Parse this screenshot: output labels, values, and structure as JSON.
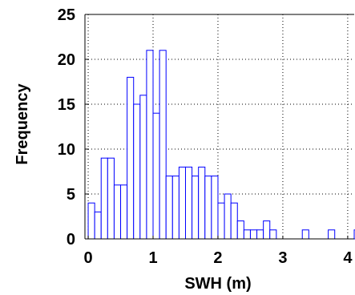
{
  "chart_data": {
    "type": "bar",
    "xlabel": "SWH (m)",
    "ylabel": "Frequency",
    "xlim": [
      -0.05,
      4.1
    ],
    "ylim": [
      0,
      25
    ],
    "xticks": [
      "0",
      "1",
      "2",
      "3",
      "4"
    ],
    "yticks": [
      "0",
      "5",
      "10",
      "15",
      "20",
      "25"
    ],
    "grid": true,
    "bin_width": 0.1,
    "bar_color": "#0000ff",
    "bars": [
      {
        "x": 0.0,
        "y": 4
      },
      {
        "x": 0.1,
        "y": 3
      },
      {
        "x": 0.2,
        "y": 9
      },
      {
        "x": 0.3,
        "y": 9
      },
      {
        "x": 0.4,
        "y": 6
      },
      {
        "x": 0.5,
        "y": 6
      },
      {
        "x": 0.6,
        "y": 18
      },
      {
        "x": 0.7,
        "y": 15
      },
      {
        "x": 0.8,
        "y": 16
      },
      {
        "x": 0.9,
        "y": 21
      },
      {
        "x": 1.0,
        "y": 14
      },
      {
        "x": 1.1,
        "y": 21
      },
      {
        "x": 1.2,
        "y": 7
      },
      {
        "x": 1.3,
        "y": 7
      },
      {
        "x": 1.4,
        "y": 8
      },
      {
        "x": 1.5,
        "y": 8
      },
      {
        "x": 1.6,
        "y": 7
      },
      {
        "x": 1.7,
        "y": 8
      },
      {
        "x": 1.8,
        "y": 7
      },
      {
        "x": 1.9,
        "y": 7
      },
      {
        "x": 2.0,
        "y": 4
      },
      {
        "x": 2.1,
        "y": 5
      },
      {
        "x": 2.2,
        "y": 4
      },
      {
        "x": 2.3,
        "y": 2
      },
      {
        "x": 2.4,
        "y": 1
      },
      {
        "x": 2.5,
        "y": 1
      },
      {
        "x": 2.6,
        "y": 1
      },
      {
        "x": 2.7,
        "y": 2
      },
      {
        "x": 2.8,
        "y": 1
      },
      {
        "x": 3.3,
        "y": 1
      },
      {
        "x": 3.7,
        "y": 1
      },
      {
        "x": 4.1,
        "y": 1
      }
    ]
  }
}
